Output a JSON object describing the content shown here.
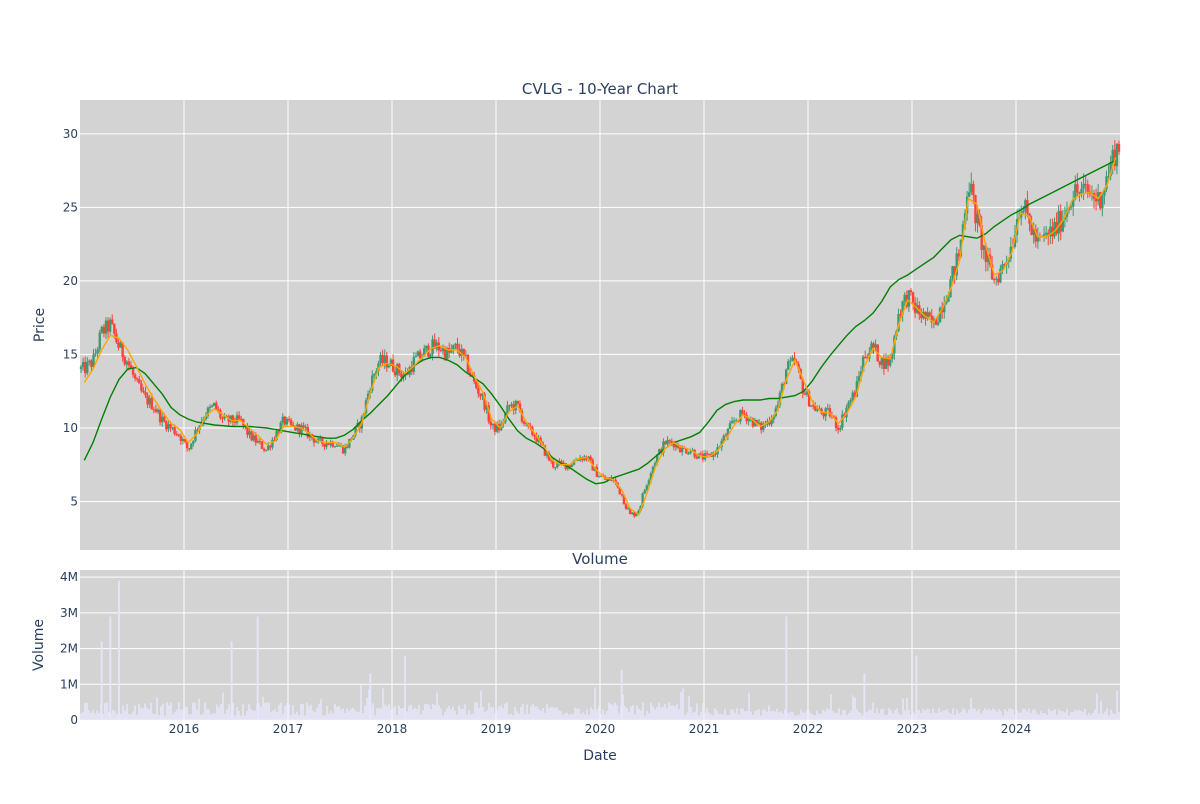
{
  "chart_data": [
    {
      "type": "candlestick",
      "title": "CVLG - 10-Year Chart",
      "xlabel": "",
      "ylabel": "Price",
      "ylim": [
        1.7,
        32.3
      ],
      "yticks": [
        5,
        10,
        15,
        20,
        25,
        30
      ],
      "grid": true,
      "colors": {
        "up": "#3d9970",
        "down": "#ff4136",
        "ma_short": "#ffa500",
        "ma_long": "#008000",
        "plot_bg": "#d3d3d3",
        "grid": "#ffffff"
      },
      "x_points": [
        "2015-01",
        "2015-02",
        "2015-03",
        "2015-04",
        "2015-05",
        "2015-06",
        "2015-07",
        "2015-08",
        "2015-09",
        "2015-10",
        "2015-11",
        "2015-12",
        "2016-01",
        "2016-02",
        "2016-03",
        "2016-04",
        "2016-05",
        "2016-06",
        "2016-07",
        "2016-08",
        "2016-09",
        "2016-10",
        "2016-11",
        "2016-12",
        "2017-01",
        "2017-02",
        "2017-03",
        "2017-04",
        "2017-05",
        "2017-06",
        "2017-07",
        "2017-08",
        "2017-09",
        "2017-10",
        "2017-11",
        "2017-12",
        "2018-01",
        "2018-02",
        "2018-03",
        "2018-04",
        "2018-05",
        "2018-06",
        "2018-07",
        "2018-08",
        "2018-09",
        "2018-10",
        "2018-11",
        "2018-12",
        "2019-01",
        "2019-02",
        "2019-03",
        "2019-04",
        "2019-05",
        "2019-06",
        "2019-07",
        "2019-08",
        "2019-09",
        "2019-10",
        "2019-11",
        "2019-12",
        "2020-01",
        "2020-02",
        "2020-03",
        "2020-04",
        "2020-05",
        "2020-06",
        "2020-07",
        "2020-08",
        "2020-09",
        "2020-10",
        "2020-11",
        "2020-12",
        "2021-01",
        "2021-02",
        "2021-03",
        "2021-04",
        "2021-05",
        "2021-06",
        "2021-07",
        "2021-08",
        "2021-09",
        "2021-10",
        "2021-11",
        "2021-12",
        "2022-01",
        "2022-02",
        "2022-03",
        "2022-04",
        "2022-05",
        "2022-06",
        "2022-07",
        "2022-08",
        "2022-09",
        "2022-10",
        "2022-11",
        "2022-12",
        "2023-01",
        "2023-02",
        "2023-03",
        "2023-04",
        "2023-05",
        "2023-06",
        "2023-07",
        "2023-08",
        "2023-09",
        "2023-10",
        "2023-11",
        "2023-12",
        "2024-01",
        "2024-02",
        "2024-03",
        "2024-04",
        "2024-05",
        "2024-06",
        "2024-07",
        "2024-08",
        "2024-09",
        "2024-10",
        "2024-11",
        "2024-12"
      ],
      "close": [
        14.0,
        14.5,
        16.5,
        17.0,
        15.5,
        14.5,
        13.0,
        12.0,
        11.5,
        10.5,
        10.0,
        9.5,
        8.5,
        10.0,
        11.0,
        11.5,
        10.5,
        10.5,
        10.5,
        9.5,
        9.0,
        8.5,
        9.5,
        10.5,
        10.0,
        10.0,
        9.5,
        9.0,
        9.0,
        9.0,
        8.5,
        9.5,
        10.5,
        13.0,
        14.5,
        14.5,
        14.0,
        13.5,
        14.5,
        15.0,
        15.5,
        15.5,
        15.0,
        15.5,
        14.5,
        13.0,
        12.0,
        10.0,
        10.0,
        11.5,
        11.5,
        10.0,
        9.5,
        8.5,
        7.5,
        7.5,
        7.5,
        8.0,
        8.0,
        7.0,
        6.5,
        6.5,
        5.5,
        4.0,
        4.5,
        6.5,
        8.0,
        9.0,
        9.0,
        8.5,
        8.5,
        8.0,
        8.0,
        8.5,
        9.5,
        10.5,
        11.0,
        10.5,
        10.0,
        10.5,
        11.5,
        14.0,
        14.5,
        12.5,
        11.5,
        11.0,
        11.0,
        10.0,
        11.5,
        12.5,
        15.0,
        15.5,
        14.5,
        14.5,
        18.0,
        19.0,
        18.0,
        17.5,
        17.0,
        18.5,
        20.0,
        22.0,
        27.0,
        24.0,
        21.5,
        20.0,
        21.0,
        22.5,
        25.5,
        24.0,
        22.5,
        23.0,
        23.5,
        24.5,
        26.0,
        26.0,
        26.0,
        25.5,
        27.0,
        29.0
      ],
      "ma_short": [
        13.1,
        14.0,
        15.3,
        16.3,
        16.1,
        15.3,
        14.2,
        13.0,
        12.0,
        11.1,
        10.3,
        9.9,
        9.0,
        9.6,
        10.8,
        11.3,
        10.9,
        10.5,
        10.5,
        10.0,
        9.5,
        8.9,
        9.1,
        10.1,
        10.1,
        10.0,
        9.6,
        9.1,
        9.0,
        9.0,
        8.7,
        9.3,
        10.3,
        12.4,
        14.1,
        14.4,
        14.2,
        13.7,
        14.2,
        14.8,
        15.4,
        15.6,
        15.3,
        15.3,
        14.8,
        13.5,
        12.4,
        10.6,
        10.0,
        11.1,
        11.5,
        10.4,
        9.6,
        8.8,
        7.8,
        7.5,
        7.5,
        7.9,
        8.0,
        7.2,
        6.6,
        6.5,
        5.8,
        4.5,
        4.1,
        5.7,
        7.5,
        8.6,
        9.0,
        8.7,
        8.5,
        8.1,
        8.0,
        8.4,
        9.2,
        10.2,
        10.9,
        10.6,
        10.1,
        10.4,
        11.2,
        13.3,
        14.6,
        13.2,
        11.8,
        11.1,
        11.0,
        10.3,
        11.0,
        12.1,
        14.2,
        15.4,
        14.8,
        14.7,
        17.1,
        18.7,
        18.2,
        17.6,
        17.2,
        18.1,
        19.5,
        21.4,
        25.6,
        25.2,
        22.4,
        20.4,
        20.7,
        21.9,
        24.6,
        24.4,
        23.0,
        23.0,
        23.4,
        24.2,
        25.5,
        25.9,
        26.0,
        25.6,
        26.5,
        28.4
      ],
      "ma_long": [
        7.8,
        9.0,
        10.6,
        12.1,
        13.3,
        14.0,
        14.1,
        13.7,
        13.0,
        12.3,
        11.4,
        10.9,
        10.6,
        10.4,
        10.3,
        10.2,
        10.15,
        10.1,
        10.1,
        10.1,
        10.05,
        10.0,
        9.9,
        9.8,
        9.7,
        9.6,
        9.5,
        9.4,
        9.3,
        9.3,
        9.5,
        9.9,
        10.5,
        11.0,
        11.6,
        12.2,
        12.9,
        13.6,
        14.2,
        14.6,
        14.8,
        14.8,
        14.6,
        14.3,
        13.8,
        13.4,
        13.0,
        12.3,
        11.5,
        10.6,
        9.8,
        9.3,
        9.0,
        8.6,
        8.0,
        7.6,
        7.3,
        6.9,
        6.5,
        6.2,
        6.3,
        6.6,
        6.8,
        7.0,
        7.2,
        7.6,
        8.1,
        8.6,
        9.0,
        9.2,
        9.4,
        9.7,
        10.4,
        11.2,
        11.6,
        11.8,
        11.9,
        11.9,
        11.9,
        12.0,
        12.0,
        12.1,
        12.2,
        12.5,
        13.2,
        14.1,
        14.9,
        15.6,
        16.3,
        16.9,
        17.3,
        17.8,
        18.6,
        19.6,
        20.1,
        20.4,
        20.8,
        21.2,
        21.6,
        22.2,
        22.8,
        23.1,
        23.0,
        22.9,
        23.2,
        23.7,
        24.1,
        24.5,
        24.8,
        25.2,
        25.5,
        25.8,
        26.1,
        26.4,
        26.7,
        27.0,
        27.3,
        27.6,
        27.9,
        28.2
      ]
    },
    {
      "type": "bar",
      "title": "Volume",
      "xlabel": "Date",
      "ylabel": "Volume",
      "ylim": [
        0,
        4200000
      ],
      "yticks": [
        0,
        1000000,
        2000000,
        3000000,
        4000000
      ],
      "ytick_labels": [
        "0",
        "1M",
        "2M",
        "3M",
        "4M"
      ],
      "xtick_labels": [
        "2016",
        "2017",
        "2018",
        "2019",
        "2020",
        "2021",
        "2022",
        "2023",
        "2024"
      ],
      "bar_color": "#e6e6fa",
      "spikes": [
        {
          "x": "2015-03",
          "value": 2200000
        },
        {
          "x": "2015-04",
          "value": 2900000
        },
        {
          "x": "2015-05",
          "value": 3900000
        },
        {
          "x": "2016-06",
          "value": 2200000
        },
        {
          "x": "2016-09",
          "value": 2900000
        },
        {
          "x": "2017-10",
          "value": 1300000
        },
        {
          "x": "2018-02",
          "value": 1800000
        },
        {
          "x": "2020-03",
          "value": 1400000
        },
        {
          "x": "2021-10",
          "value": 2900000
        },
        {
          "x": "2022-07",
          "value": 1300000
        },
        {
          "x": "2023-01",
          "value": 1800000
        }
      ]
    }
  ]
}
